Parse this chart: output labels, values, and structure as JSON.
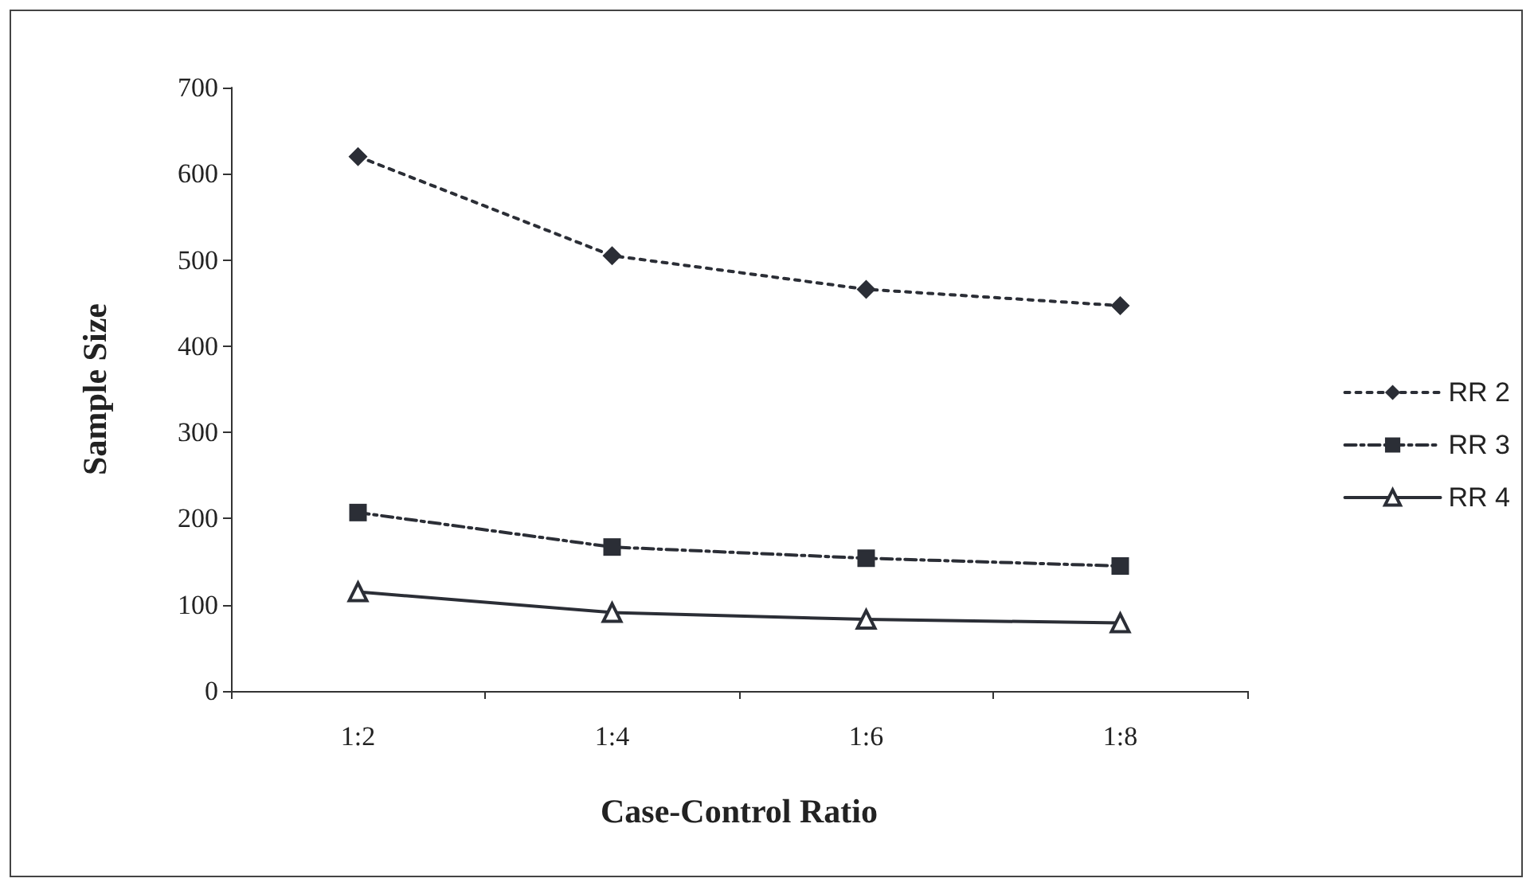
{
  "chart_data": {
    "type": "line",
    "xlabel": "Case-Control Ratio",
    "ylabel": "Sample Size",
    "categories": [
      "1:2",
      "1:4",
      "1:6",
      "1:8"
    ],
    "ylim": [
      0,
      700
    ],
    "yticks": [
      0,
      100,
      200,
      300,
      400,
      500,
      600,
      700
    ],
    "grid": false,
    "legend": "right",
    "series": [
      {
        "name": "RR 2",
        "color": "#2b2e36",
        "values": [
          620,
          505,
          466,
          447
        ],
        "marker": "diamond",
        "line_style": "dotted"
      },
      {
        "name": "RR 3",
        "color": "#2b2e36",
        "values": [
          207,
          167,
          154,
          145
        ],
        "marker": "square",
        "line_style": "dashed"
      },
      {
        "name": "RR 4",
        "color": "#2b2e36",
        "values": [
          115,
          91,
          83,
          79
        ],
        "marker": "triangle",
        "line_style": "solid"
      }
    ]
  }
}
